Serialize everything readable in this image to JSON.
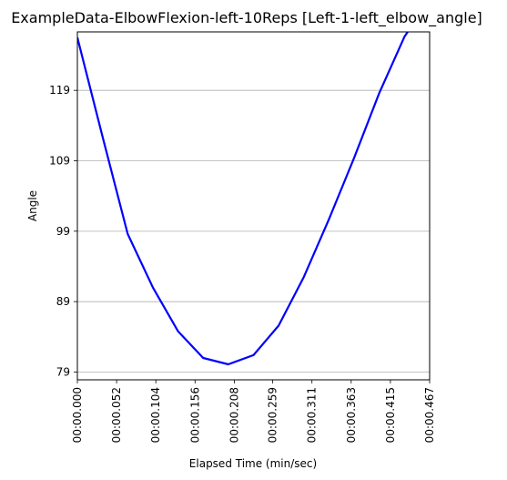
{
  "chart_data": {
    "type": "line",
    "title": "ExampleData-ElbowFlexion-left-10Reps [Left-1-left_elbow_angle]",
    "xlabel": "Elapsed Time (min/sec)",
    "ylabel": "Angle",
    "x_tick_labels": [
      "00:00.000",
      "00:00.052",
      "00:00.104",
      "00:00.156",
      "00:00.208",
      "00:00.259",
      "00:00.311",
      "00:00.363",
      "00:00.415",
      "00:00.467"
    ],
    "x_tick_values": [
      0,
      0.052,
      0.104,
      0.156,
      0.208,
      0.259,
      0.311,
      0.363,
      0.415,
      0.467
    ],
    "y_ticks": [
      79,
      89,
      99,
      109,
      119
    ],
    "xlim": [
      0,
      0.467
    ],
    "ylim": [
      77.9,
      127.3
    ],
    "grid": "horizontal",
    "series": [
      {
        "color": "#0000ff",
        "x": [
          0,
          0.0334,
          0.0667,
          0.1001,
          0.1334,
          0.1668,
          0.2001,
          0.2335,
          0.2668,
          0.3002,
          0.3335,
          0.3669,
          0.4002,
          0.4336,
          0.467
        ],
        "values": [
          126.5,
          112.4,
          98.6,
          91.0,
          84.8,
          81.0,
          80.1,
          81.4,
          85.6,
          92.5,
          100.7,
          109.4,
          118.6,
          126.6,
          132.0
        ]
      }
    ]
  }
}
